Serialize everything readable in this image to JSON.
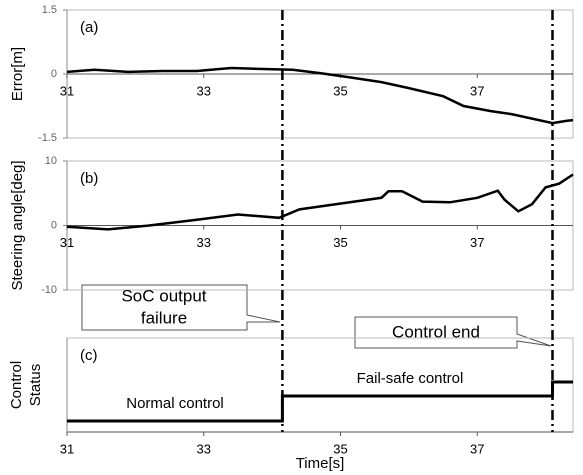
{
  "chart_data": [
    {
      "type": "line",
      "panel_label": "(a)",
      "ylabel": "Error[m]",
      "xlim": [
        31,
        38.4
      ],
      "xticks": [
        31,
        33,
        35,
        37
      ],
      "ylim": [
        -1.5,
        1.5
      ],
      "yticks": [
        1.5,
        0,
        -1.5
      ],
      "series": [
        {
          "color": "#000000",
          "x": [
            31,
            31.4,
            31.9,
            32.4,
            32.9,
            33.4,
            33.8,
            34.3,
            34.7,
            35.1,
            35.6,
            36,
            36.5,
            36.8,
            37.2,
            37.5,
            38.1,
            38.3,
            38.4
          ],
          "values": [
            0.05,
            0.1,
            0.05,
            0.07,
            0.07,
            0.14,
            0.12,
            0.1,
            0.02,
            -0.07,
            -0.19,
            -0.33,
            -0.52,
            -0.75,
            -0.87,
            -0.94,
            -1.15,
            -1.1,
            -1.08
          ]
        }
      ]
    },
    {
      "type": "line",
      "panel_label": "(b)",
      "ylabel": "Steering angle[deg]",
      "xlim": [
        31,
        38.4
      ],
      "xticks": [
        31,
        33,
        35,
        37
      ],
      "ylim": [
        -10,
        10
      ],
      "yticks": [
        10,
        0,
        -10
      ],
      "series": [
        {
          "color": "#000000",
          "x": [
            31,
            31.6,
            32.2,
            32.9,
            33.5,
            34.1,
            34.4,
            34.8,
            35.6,
            35.7,
            35.9,
            36.2,
            36.6,
            37.0,
            37.3,
            37.4,
            37.6,
            37.8,
            38.0,
            38.2,
            38.4
          ],
          "values": [
            -0.2,
            -0.6,
            0,
            0.9,
            1.7,
            1.2,
            2.5,
            3.1,
            4.3,
            5.3,
            5.3,
            3.7,
            3.6,
            4.3,
            5.4,
            4.0,
            2.2,
            3.3,
            5.9,
            6.5,
            7.9
          ]
        }
      ]
    },
    {
      "type": "step",
      "panel_label": "(c)",
      "ylabel_lines": [
        "Control",
        "Status"
      ],
      "xlabel": "Time[s]",
      "xlim": [
        31,
        38.4
      ],
      "xticks": [
        31,
        33,
        35,
        37
      ],
      "ylim": [
        -0.44,
        3.32
      ],
      "series": [
        {
          "color": "#000000",
          "x": [
            31,
            34.15,
            34.15,
            38.1,
            38.1,
            38.4
          ],
          "values": [
            0,
            0,
            1,
            1,
            1.56,
            1.56
          ]
        }
      ],
      "state_labels": [
        "Normal control",
        "Fail-safe control"
      ],
      "events": [
        34.15,
        38.1
      ],
      "annotations": [
        {
          "lines": [
            "SoC output",
            "failure"
          ]
        },
        {
          "lines": [
            "Control end"
          ]
        }
      ]
    }
  ]
}
